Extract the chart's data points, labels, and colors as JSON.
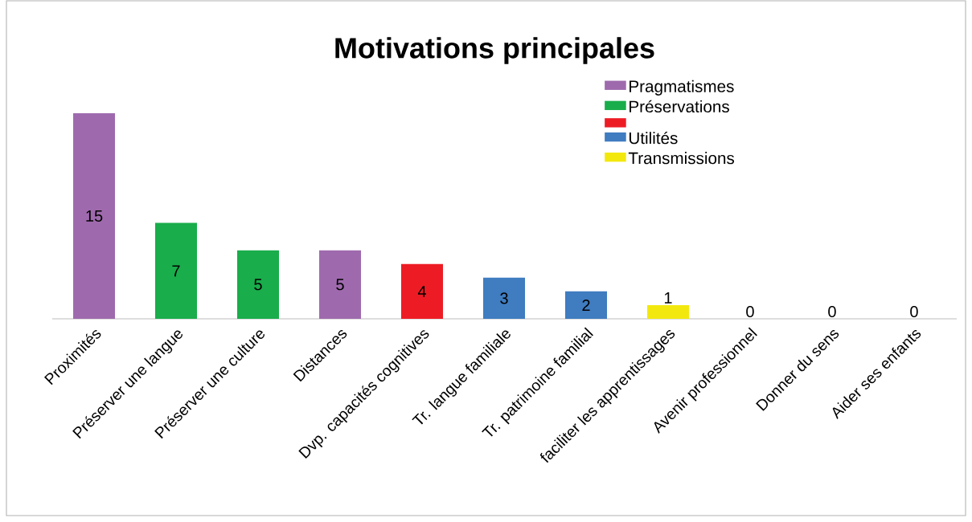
{
  "chart_data": {
    "type": "bar",
    "title": "Motivations principales",
    "categories": [
      "Proximités",
      "Préserver une langue",
      "Préserver une culture",
      "Distances",
      "Dvp. capacités cognitives",
      "Tr. langue familiale",
      "Tr. patrimoine familial",
      "faciliter les apprentissages",
      "Avenir professionnel",
      "Donner du sens",
      "Aider ses enfants"
    ],
    "series": [
      {
        "name": "Pragmatismes",
        "color": "#9e6aad",
        "values": [
          15,
          null,
          null,
          5,
          null,
          null,
          null,
          null,
          null,
          null,
          null
        ]
      },
      {
        "name": "Préservations",
        "color": "#19ad4b",
        "values": [
          null,
          7,
          5,
          null,
          null,
          null,
          null,
          null,
          null,
          null,
          null
        ]
      },
      {
        "color": "#ed1c24",
        "values": [
          null,
          null,
          null,
          null,
          4,
          null,
          null,
          null,
          null,
          null,
          null
        ]
      },
      {
        "name": "Utilités",
        "color": "#3f7cc0",
        "values": [
          null,
          null,
          null,
          null,
          null,
          3,
          2,
          null,
          null,
          null,
          null
        ]
      },
      {
        "name": "Transmissions",
        "color": "#f2e80e",
        "values": [
          null,
          null,
          null,
          null,
          null,
          null,
          null,
          1,
          0,
          0,
          0
        ]
      }
    ],
    "data_labels": true,
    "legend": "top right"
  }
}
